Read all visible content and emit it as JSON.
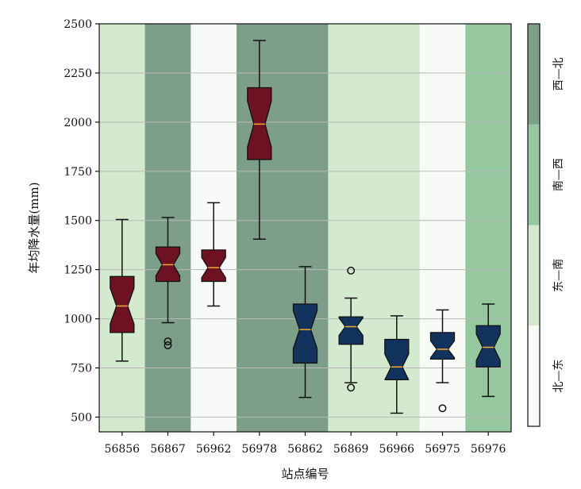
{
  "chart_data": {
    "type": "boxplot",
    "xlabel": "站点编号",
    "ylabel": "年均降水量(mm)",
    "ylim": [
      425,
      2500
    ],
    "yticks": [
      500,
      750,
      1000,
      1250,
      1500,
      1750,
      2000,
      2250,
      2500
    ],
    "grid": "horizontal",
    "notched": true,
    "categories": [
      "56856",
      "56867",
      "56962",
      "56978",
      "56862",
      "56869",
      "56966",
      "56975",
      "56976"
    ],
    "region_of_category": [
      "东—南",
      "西—北",
      "北—东",
      "西—北",
      "西—北",
      "东—南",
      "东—南",
      "北—东",
      "南—西"
    ],
    "box_color_of_category": [
      "#6e1223",
      "#6e1223",
      "#6e1223",
      "#6e1223",
      "#12335e",
      "#12335e",
      "#12335e",
      "#12335e",
      "#12335e"
    ],
    "boxes": [
      {
        "station": "56856",
        "whisker_low": 785,
        "q1": 930,
        "median": 1065,
        "q3": 1215,
        "whisker_high": 1505,
        "outliers": []
      },
      {
        "station": "56867",
        "whisker_low": 980,
        "q1": 1190,
        "median": 1275,
        "q3": 1365,
        "whisker_high": 1515,
        "outliers": [
          865,
          885
        ]
      },
      {
        "station": "56962",
        "whisker_low": 1065,
        "q1": 1190,
        "median": 1260,
        "q3": 1350,
        "whisker_high": 1590,
        "outliers": []
      },
      {
        "station": "56978",
        "whisker_low": 1405,
        "q1": 1810,
        "median": 1990,
        "q3": 2175,
        "whisker_high": 2415,
        "outliers": []
      },
      {
        "station": "56862",
        "whisker_low": 600,
        "q1": 775,
        "median": 945,
        "q3": 1075,
        "whisker_high": 1265,
        "outliers": []
      },
      {
        "station": "56869",
        "whisker_low": 675,
        "q1": 870,
        "median": 960,
        "q3": 1010,
        "whisker_high": 1105,
        "outliers": [
          650,
          1245
        ]
      },
      {
        "station": "56966",
        "whisker_low": 520,
        "q1": 690,
        "median": 755,
        "q3": 895,
        "whisker_high": 1015,
        "outliers": []
      },
      {
        "station": "56975",
        "whisker_low": 675,
        "q1": 795,
        "median": 845,
        "q3": 930,
        "whisker_high": 1045,
        "outliers": [
          545
        ]
      },
      {
        "station": "56976",
        "whisker_low": 605,
        "q1": 755,
        "median": 855,
        "q3": 965,
        "whisker_high": 1075,
        "outliers": []
      }
    ],
    "colorbar": {
      "labels": [
        "北—东",
        "东—南",
        "南—西",
        "西—北"
      ],
      "colors": [
        "#f7faf6",
        "#d3eace",
        "#95c89f",
        "#7d9e88"
      ]
    },
    "box_colors": {
      "red": "#6e1223",
      "blue": "#12335e",
      "median": "#f0a030"
    }
  }
}
